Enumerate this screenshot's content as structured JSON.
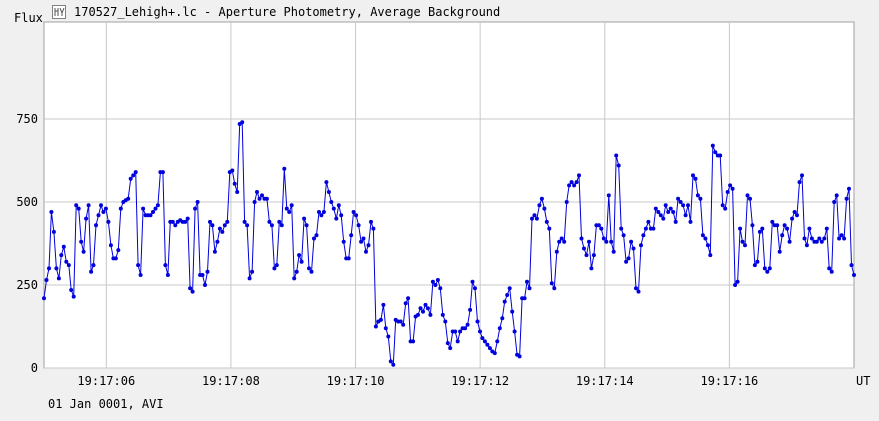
{
  "chart_data": {
    "type": "line",
    "title": "170527_Lehigh+.lc - Aperture Photometry, Average Background",
    "ylabel": "Flux",
    "xlabel": "UT",
    "footer": "01 Jan 0001, AVI",
    "grid": true,
    "x_start": "19:17:05.0",
    "x_end": "19:17:18.0",
    "ylim": [
      0,
      750
    ],
    "yticks": [
      0,
      250,
      500,
      750
    ],
    "xticks": [
      "19:17:06",
      "19:17:08",
      "19:17:10",
      "19:17:12",
      "19:17:14",
      "19:17:16"
    ],
    "series": [
      {
        "color": "#0000dd",
        "values": [
          210,
          265,
          300,
          470,
          410,
          300,
          270,
          340,
          365,
          320,
          310,
          235,
          215,
          490,
          480,
          380,
          350,
          450,
          490,
          290,
          310,
          430,
          460,
          490,
          470,
          480,
          440,
          370,
          330,
          330,
          355,
          480,
          500,
          505,
          510,
          570,
          580,
          590,
          310,
          280,
          480,
          460,
          460,
          460,
          470,
          480,
          490,
          590,
          590,
          310,
          280,
          440,
          440,
          430,
          440,
          445,
          440,
          440,
          450,
          240,
          230,
          480,
          500,
          280,
          280,
          250,
          290,
          440,
          430,
          350,
          380,
          420,
          410,
          430,
          440,
          590,
          595,
          555,
          530,
          735,
          740,
          440,
          430,
          270,
          290,
          500,
          530,
          510,
          520,
          510,
          510,
          440,
          430,
          300,
          310,
          440,
          430,
          600,
          480,
          470,
          490,
          270,
          290,
          340,
          320,
          450,
          430,
          300,
          290,
          390,
          400,
          470,
          460,
          470,
          560,
          530,
          500,
          480,
          450,
          490,
          460,
          380,
          330,
          330,
          400,
          470,
          460,
          430,
          380,
          390,
          350,
          370,
          440,
          420,
          125,
          140,
          145,
          190,
          120,
          95,
          20,
          10,
          145,
          140,
          140,
          130,
          195,
          210,
          80,
          80,
          155,
          160,
          180,
          170,
          190,
          180,
          160,
          260,
          250,
          265,
          240,
          160,
          140,
          75,
          60,
          110,
          110,
          80,
          110,
          120,
          120,
          130,
          175,
          260,
          240,
          140,
          110,
          90,
          80,
          70,
          60,
          50,
          45,
          80,
          120,
          150,
          200,
          220,
          240,
          170,
          110,
          40,
          35,
          210,
          210,
          260,
          240,
          450,
          460,
          450,
          490,
          510,
          480,
          440,
          420,
          255,
          240,
          350,
          380,
          390,
          380,
          500,
          550,
          560,
          550,
          560,
          580,
          390,
          360,
          340,
          380,
          300,
          340,
          430,
          430,
          420,
          390,
          380,
          520,
          380,
          350,
          640,
          610,
          420,
          400,
          320,
          330,
          380,
          360,
          240,
          230,
          370,
          400,
          420,
          440,
          420,
          420,
          480,
          470,
          460,
          450,
          490,
          470,
          480,
          470,
          440,
          510,
          500,
          490,
          460,
          490,
          440,
          580,
          570,
          520,
          510,
          400,
          390,
          370,
          340,
          670,
          650,
          640,
          640,
          490,
          480,
          530,
          550,
          540,
          250,
          260,
          420,
          380,
          370,
          520,
          510,
          430,
          310,
          320,
          410,
          420,
          300,
          290,
          300,
          440,
          430,
          430,
          350,
          400,
          430,
          420,
          380,
          450,
          470,
          460,
          560,
          580,
          390,
          370,
          420,
          390,
          380,
          380,
          390,
          380,
          390,
          420,
          300,
          290,
          500,
          520,
          390,
          400,
          390,
          510,
          540,
          310,
          280
        ]
      }
    ]
  }
}
